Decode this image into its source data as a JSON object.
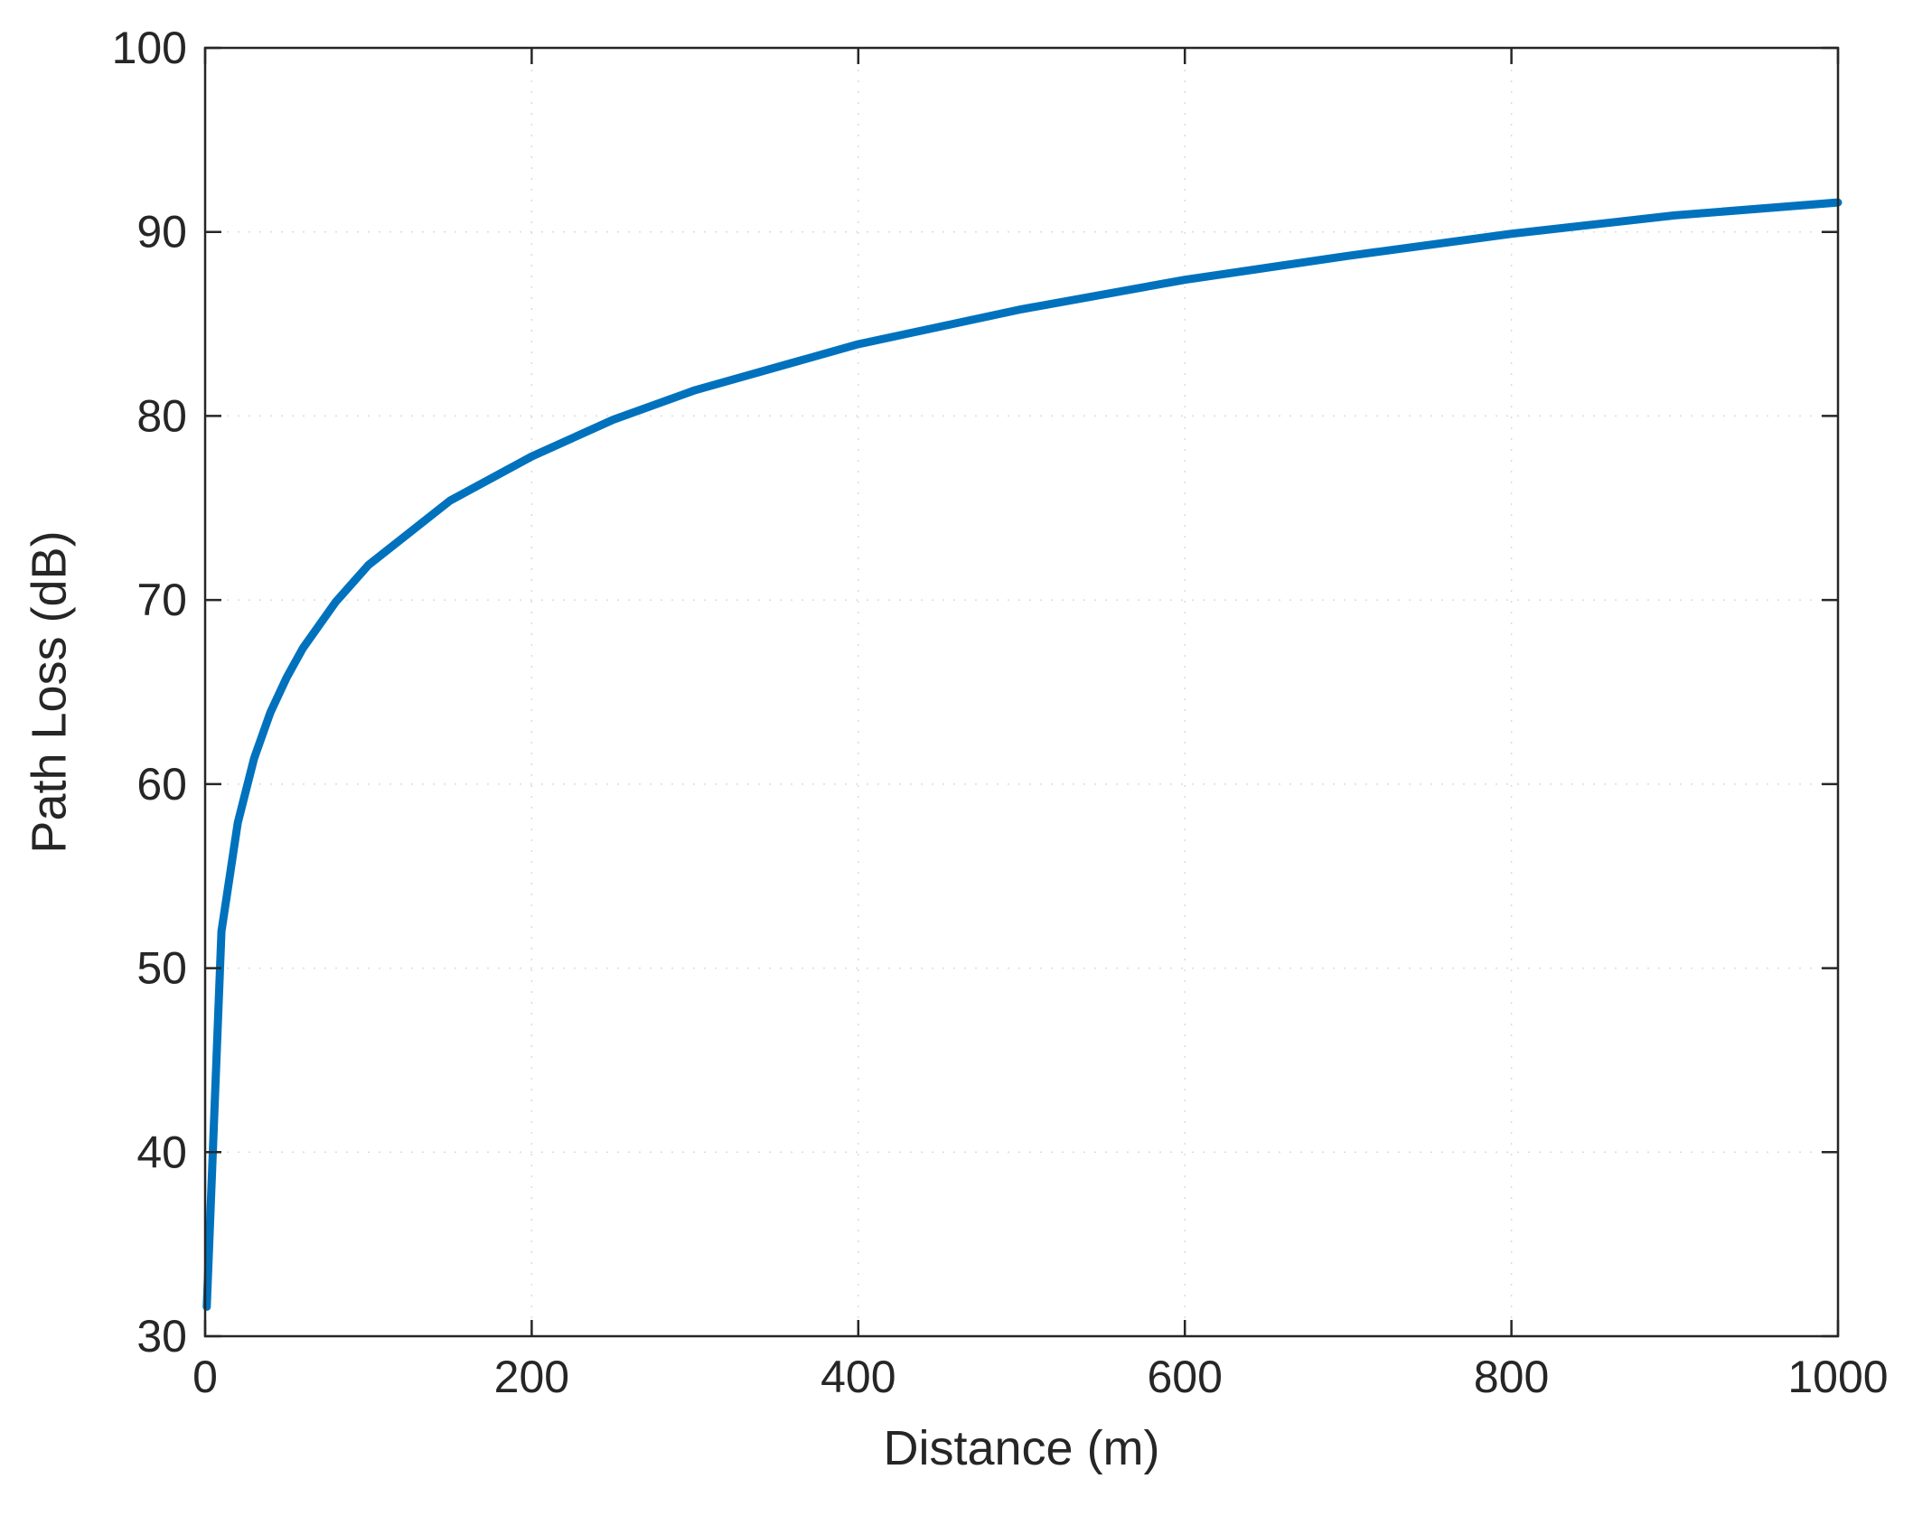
{
  "chart_data": {
    "type": "line",
    "title": "",
    "xlabel": "Distance (m)",
    "ylabel": "Path Loss (dB)",
    "xlim": [
      0,
      1000
    ],
    "ylim": [
      30,
      100
    ],
    "xticks": [
      0,
      200,
      400,
      600,
      800,
      1000
    ],
    "yticks": [
      30,
      40,
      50,
      60,
      70,
      80,
      90,
      100
    ],
    "grid": true,
    "box": true,
    "line_color": "#0072BD",
    "series": [
      {
        "x": [
          1,
          10,
          20,
          30,
          40,
          50,
          60,
          80,
          100,
          150,
          200,
          250,
          300,
          400,
          500,
          600,
          700,
          800,
          900,
          1000
        ],
        "y": [
          31.6,
          52.0,
          57.9,
          61.4,
          63.9,
          65.8,
          67.4,
          69.9,
          71.9,
          75.4,
          77.8,
          79.8,
          81.4,
          83.9,
          85.8,
          87.4,
          88.7,
          89.9,
          90.9,
          91.6
        ]
      }
    ]
  }
}
